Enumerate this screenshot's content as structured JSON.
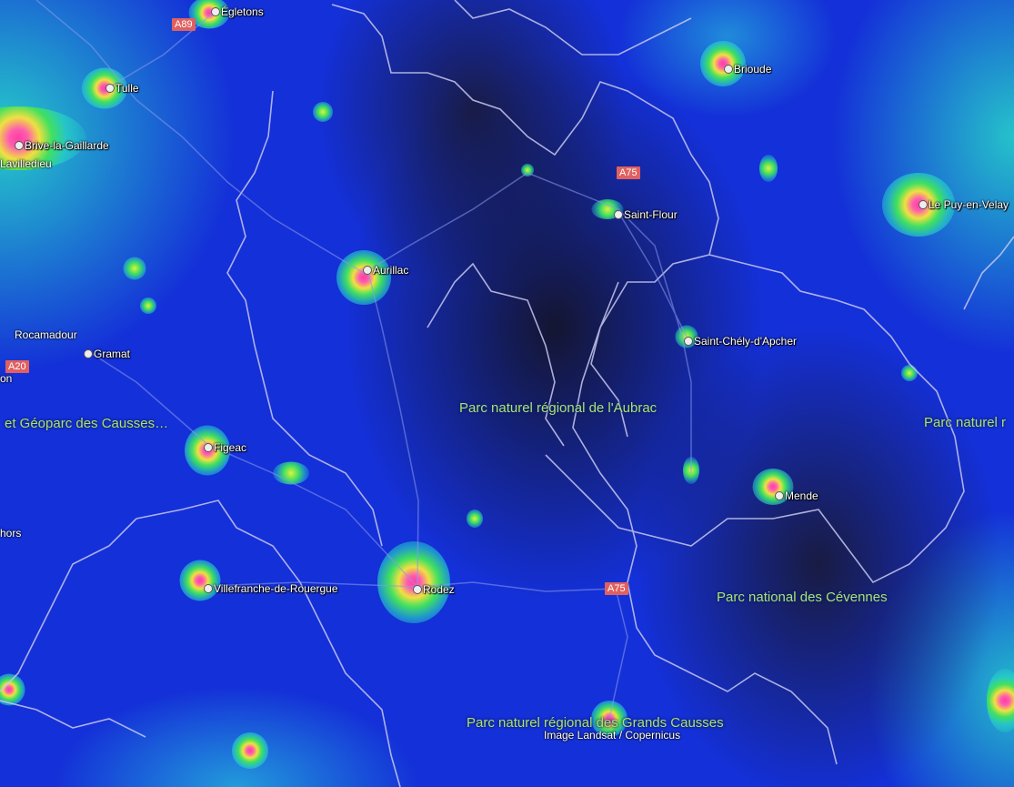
{
  "map": {
    "cities": [
      {
        "name": "Égletons"
      },
      {
        "name": "Tulle"
      },
      {
        "name": "Brive-la-Gaillarde"
      },
      {
        "name": "Brioude"
      },
      {
        "name": "Saint-Flour"
      },
      {
        "name": "Le Puy-en-Velay"
      },
      {
        "name": "Aurillac"
      },
      {
        "name": "Gramat"
      },
      {
        "name": "Saint-Chély-d'Apcher"
      },
      {
        "name": "Figeac"
      },
      {
        "name": "Mende"
      },
      {
        "name": "Villefranche-de-Rouergue"
      },
      {
        "name": "Rodez"
      }
    ],
    "place_labels": [
      "Lavilledieu",
      "Rocamadour",
      "on",
      "hors"
    ],
    "road_shields": [
      "A89",
      "A75",
      "A20",
      "A75"
    ],
    "parks": [
      "Parc naturel régional de l'Aubrac",
      "et Géoparc des Causses…",
      "Parc naturel r",
      "Parc national des Cévennes",
      "Parc naturel régional des Grands Causses"
    ],
    "attribution": "Image Landsat / Copernicus",
    "colors": {
      "dark_sky": "#1430d8",
      "road_shield": "#e06060",
      "park_label": "#a8e07a",
      "bright_core": "#ff3fa0"
    }
  }
}
